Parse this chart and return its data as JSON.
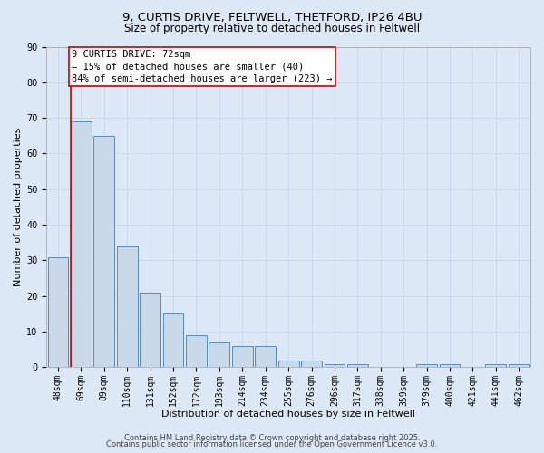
{
  "title1": "9, CURTIS DRIVE, FELTWELL, THETFORD, IP26 4BU",
  "title2": "Size of property relative to detached houses in Feltwell",
  "xlabel": "Distribution of detached houses by size in Feltwell",
  "ylabel": "Number of detached properties",
  "categories": [
    "48sqm",
    "69sqm",
    "89sqm",
    "110sqm",
    "131sqm",
    "152sqm",
    "172sqm",
    "193sqm",
    "214sqm",
    "234sqm",
    "255sqm",
    "276sqm",
    "296sqm",
    "317sqm",
    "338sqm",
    "359sqm",
    "379sqm",
    "400sqm",
    "421sqm",
    "441sqm",
    "462sqm"
  ],
  "values": [
    31,
    69,
    65,
    34,
    21,
    15,
    9,
    7,
    6,
    6,
    2,
    2,
    1,
    1,
    0,
    0,
    1,
    1,
    0,
    1,
    1
  ],
  "bar_color": "#c9d9ea",
  "bar_edge_color": "#5a8ab5",
  "red_line_index": 1,
  "property_label": "9 CURTIS DRIVE: 72sqm",
  "annotation_line1": "← 15% of detached houses are smaller (40)",
  "annotation_line2": "84% of semi-detached houses are larger (223) →",
  "annotation_box_color": "#ffffff",
  "annotation_box_edge": "#cc0000",
  "red_line_color": "#cc0000",
  "ylim": [
    0,
    90
  ],
  "yticks": [
    0,
    10,
    20,
    30,
    40,
    50,
    60,
    70,
    80,
    90
  ],
  "grid_color": "#c8d8e8",
  "background_color": "#dce8f5",
  "footer1": "Contains HM Land Registry data © Crown copyright and database right 2025.",
  "footer2": "Contains public sector information licensed under the Open Government Licence v3.0.",
  "title_fontsize": 9.5,
  "subtitle_fontsize": 8.5,
  "axis_label_fontsize": 8,
  "tick_fontsize": 7,
  "annotation_fontsize": 7.5,
  "footer_fontsize": 6
}
